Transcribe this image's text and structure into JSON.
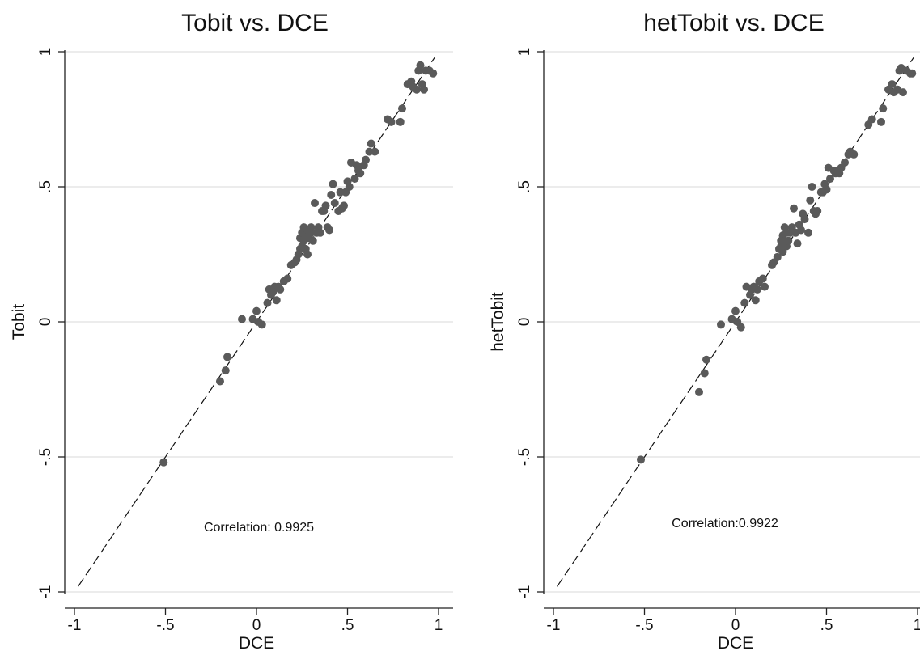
{
  "colors": {
    "marker": "#5a5a5a",
    "axis": "#222222",
    "grid": "#d9d9d9",
    "fitline": "#111111"
  },
  "chart_data": [
    {
      "type": "scatter",
      "title": "Tobit vs. DCE",
      "xlabel": "DCE",
      "ylabel": "Tobit",
      "xlim": [
        -1,
        1
      ],
      "ylim": [
        -1,
        1
      ],
      "xticks": [
        -1,
        -0.5,
        0,
        0.5,
        1
      ],
      "xtick_labels": [
        "-1",
        "-.5",
        "0",
        ".5",
        "1"
      ],
      "yticks": [
        -1,
        -0.5,
        0,
        0.5,
        1
      ],
      "ytick_labels": [
        "-1",
        "-.5",
        "0",
        ".5",
        "1"
      ],
      "grid": "horizontal",
      "annotation": "Correlation: 0.9925",
      "fit_line": {
        "x": [
          -0.98,
          0.98
        ],
        "y": [
          -0.98,
          0.98
        ],
        "style": "dashed"
      },
      "series": [
        {
          "x": [
            -0.51,
            -0.2,
            -0.17,
            -0.16,
            -0.08,
            -0.02,
            0.0,
            0.01,
            0.03,
            0.06,
            0.07,
            0.08,
            0.09,
            0.1,
            0.11,
            0.12,
            0.13,
            0.15,
            0.17,
            0.19,
            0.21,
            0.22,
            0.23,
            0.24,
            0.24,
            0.25,
            0.25,
            0.26,
            0.26,
            0.27,
            0.27,
            0.28,
            0.28,
            0.29,
            0.3,
            0.3,
            0.31,
            0.32,
            0.33,
            0.34,
            0.35,
            0.36,
            0.37,
            0.38,
            0.39,
            0.4,
            0.41,
            0.42,
            0.43,
            0.45,
            0.46,
            0.47,
            0.48,
            0.49,
            0.5,
            0.51,
            0.52,
            0.54,
            0.55,
            0.56,
            0.57,
            0.59,
            0.6,
            0.62,
            0.63,
            0.65,
            0.72,
            0.74,
            0.79,
            0.8,
            0.83,
            0.85,
            0.86,
            0.88,
            0.89,
            0.9,
            0.91,
            0.92,
            0.93,
            0.95,
            0.97
          ],
          "y": [
            -0.52,
            -0.22,
            -0.18,
            -0.13,
            0.01,
            0.01,
            0.04,
            0.0,
            -0.01,
            0.07,
            0.12,
            0.1,
            0.11,
            0.13,
            0.08,
            0.13,
            0.12,
            0.15,
            0.16,
            0.21,
            0.22,
            0.23,
            0.25,
            0.27,
            0.31,
            0.28,
            0.33,
            0.3,
            0.35,
            0.27,
            0.32,
            0.25,
            0.34,
            0.31,
            0.33,
            0.35,
            0.3,
            0.44,
            0.33,
            0.35,
            0.33,
            0.41,
            0.41,
            0.43,
            0.35,
            0.34,
            0.47,
            0.51,
            0.44,
            0.41,
            0.48,
            0.42,
            0.43,
            0.48,
            0.52,
            0.5,
            0.59,
            0.53,
            0.58,
            0.56,
            0.55,
            0.58,
            0.6,
            0.63,
            0.66,
            0.63,
            0.75,
            0.74,
            0.74,
            0.79,
            0.88,
            0.89,
            0.87,
            0.86,
            0.93,
            0.95,
            0.88,
            0.86,
            0.93,
            0.93,
            0.92
          ]
        }
      ]
    },
    {
      "type": "scatter",
      "title": "hetTobit vs. DCE",
      "xlabel": "DCE",
      "ylabel": "hetTobit",
      "xlim": [
        -1,
        1
      ],
      "ylim": [
        -1,
        1
      ],
      "xticks": [
        -1,
        -0.5,
        0,
        0.5,
        1
      ],
      "xtick_labels": [
        "-1",
        "-.5",
        "0",
        ".5",
        "1"
      ],
      "yticks": [
        -1,
        -0.5,
        0,
        0.5,
        1
      ],
      "ytick_labels": [
        "-1",
        "-.5",
        "0",
        ".5",
        "1"
      ],
      "grid": "horizontal",
      "annotation": "Correlation:0.9922",
      "fit_line": {
        "x": [
          -0.98,
          0.98
        ],
        "y": [
          -0.98,
          0.98
        ],
        "style": "dashed"
      },
      "series": [
        {
          "x": [
            -0.52,
            -0.2,
            -0.17,
            -0.16,
            -0.08,
            -0.02,
            0.0,
            0.01,
            0.03,
            0.05,
            0.06,
            0.08,
            0.09,
            0.1,
            0.11,
            0.12,
            0.13,
            0.15,
            0.16,
            0.2,
            0.21,
            0.23,
            0.24,
            0.25,
            0.25,
            0.26,
            0.26,
            0.27,
            0.27,
            0.28,
            0.28,
            0.29,
            0.3,
            0.31,
            0.32,
            0.33,
            0.34,
            0.35,
            0.36,
            0.37,
            0.38,
            0.4,
            0.41,
            0.42,
            0.43,
            0.44,
            0.45,
            0.47,
            0.48,
            0.49,
            0.5,
            0.51,
            0.52,
            0.54,
            0.55,
            0.56,
            0.57,
            0.58,
            0.6,
            0.62,
            0.63,
            0.65,
            0.73,
            0.75,
            0.8,
            0.81,
            0.84,
            0.86,
            0.87,
            0.89,
            0.9,
            0.91,
            0.92,
            0.94,
            0.96,
            0.97
          ],
          "y": [
            -0.51,
            -0.26,
            -0.19,
            -0.14,
            -0.01,
            0.01,
            0.04,
            0.0,
            -0.02,
            0.07,
            0.13,
            0.1,
            0.12,
            0.13,
            0.08,
            0.12,
            0.15,
            0.16,
            0.13,
            0.21,
            0.22,
            0.24,
            0.27,
            0.3,
            0.28,
            0.32,
            0.26,
            0.3,
            0.35,
            0.28,
            0.33,
            0.3,
            0.33,
            0.35,
            0.42,
            0.33,
            0.29,
            0.36,
            0.34,
            0.4,
            0.38,
            0.33,
            0.45,
            0.5,
            0.41,
            0.4,
            0.41,
            0.48,
            0.48,
            0.51,
            0.49,
            0.57,
            0.53,
            0.56,
            0.55,
            0.56,
            0.55,
            0.57,
            0.59,
            0.62,
            0.63,
            0.62,
            0.73,
            0.75,
            0.74,
            0.79,
            0.86,
            0.88,
            0.85,
            0.86,
            0.93,
            0.94,
            0.85,
            0.93,
            0.92,
            0.92
          ]
        }
      ]
    }
  ]
}
